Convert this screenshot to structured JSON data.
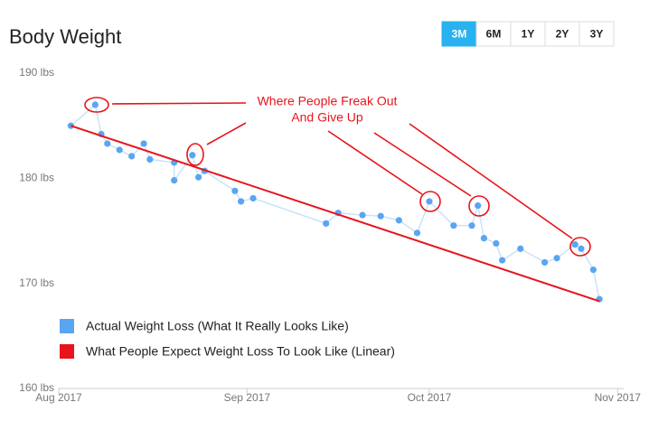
{
  "controls": {
    "buttons": [
      "3M",
      "6M",
      "1Y",
      "2Y",
      "3Y"
    ],
    "selected": 0
  },
  "chart_data": {
    "type": "line",
    "title": "Body Weight",
    "xlim": [
      0,
      93
    ],
    "xticks": [
      {
        "value": 0,
        "label": "Aug 2017"
      },
      {
        "value": 31,
        "label": "Sep 2017"
      },
      {
        "value": 61,
        "label": "Oct 2017"
      },
      {
        "value": 92,
        "label": "Nov 2017"
      }
    ],
    "ylim": [
      160,
      190
    ],
    "yticks": [
      {
        "value": 160,
        "label": "160 lbs"
      },
      {
        "value": 170,
        "label": "170 lbs"
      },
      {
        "value": 180,
        "label": "180 lbs"
      },
      {
        "value": 190,
        "label": "190 lbs"
      }
    ],
    "grid": true,
    "annotation": [
      "Where People Freak Out",
      "And Give Up"
    ],
    "annotation_color": "#e8141b",
    "series": [
      {
        "name": "Actual Weight Loss (What It Really Looks Like)",
        "color": "#5aa5f2",
        "line_color": "#c9e3f9",
        "markers": true,
        "x": [
          2,
          6,
          7,
          8,
          10,
          12,
          14,
          15,
          19,
          19,
          22,
          23,
          24,
          29,
          30,
          32,
          44,
          46,
          50,
          53,
          56,
          59,
          61,
          65,
          68,
          69,
          70,
          72,
          73,
          76,
          80,
          82,
          85,
          86,
          88,
          89
        ],
        "values": [
          185.0,
          187.0,
          184.2,
          183.3,
          182.7,
          182.1,
          183.3,
          181.8,
          181.5,
          179.8,
          182.2,
          180.1,
          180.7,
          178.8,
          177.8,
          178.1,
          175.7,
          176.7,
          176.5,
          176.4,
          176.0,
          174.8,
          177.8,
          175.5,
          175.5,
          177.4,
          174.3,
          173.8,
          172.2,
          173.3,
          172.0,
          172.4,
          173.7,
          173.3,
          171.3,
          168.5
        ]
      },
      {
        "name": "What People Expect Weight Loss To Look Like (Linear)",
        "color": "#e8141b",
        "line_color": "#e8141b",
        "markers": false,
        "x": [
          2,
          89
        ],
        "values": [
          185.0,
          168.3
        ]
      }
    ]
  }
}
